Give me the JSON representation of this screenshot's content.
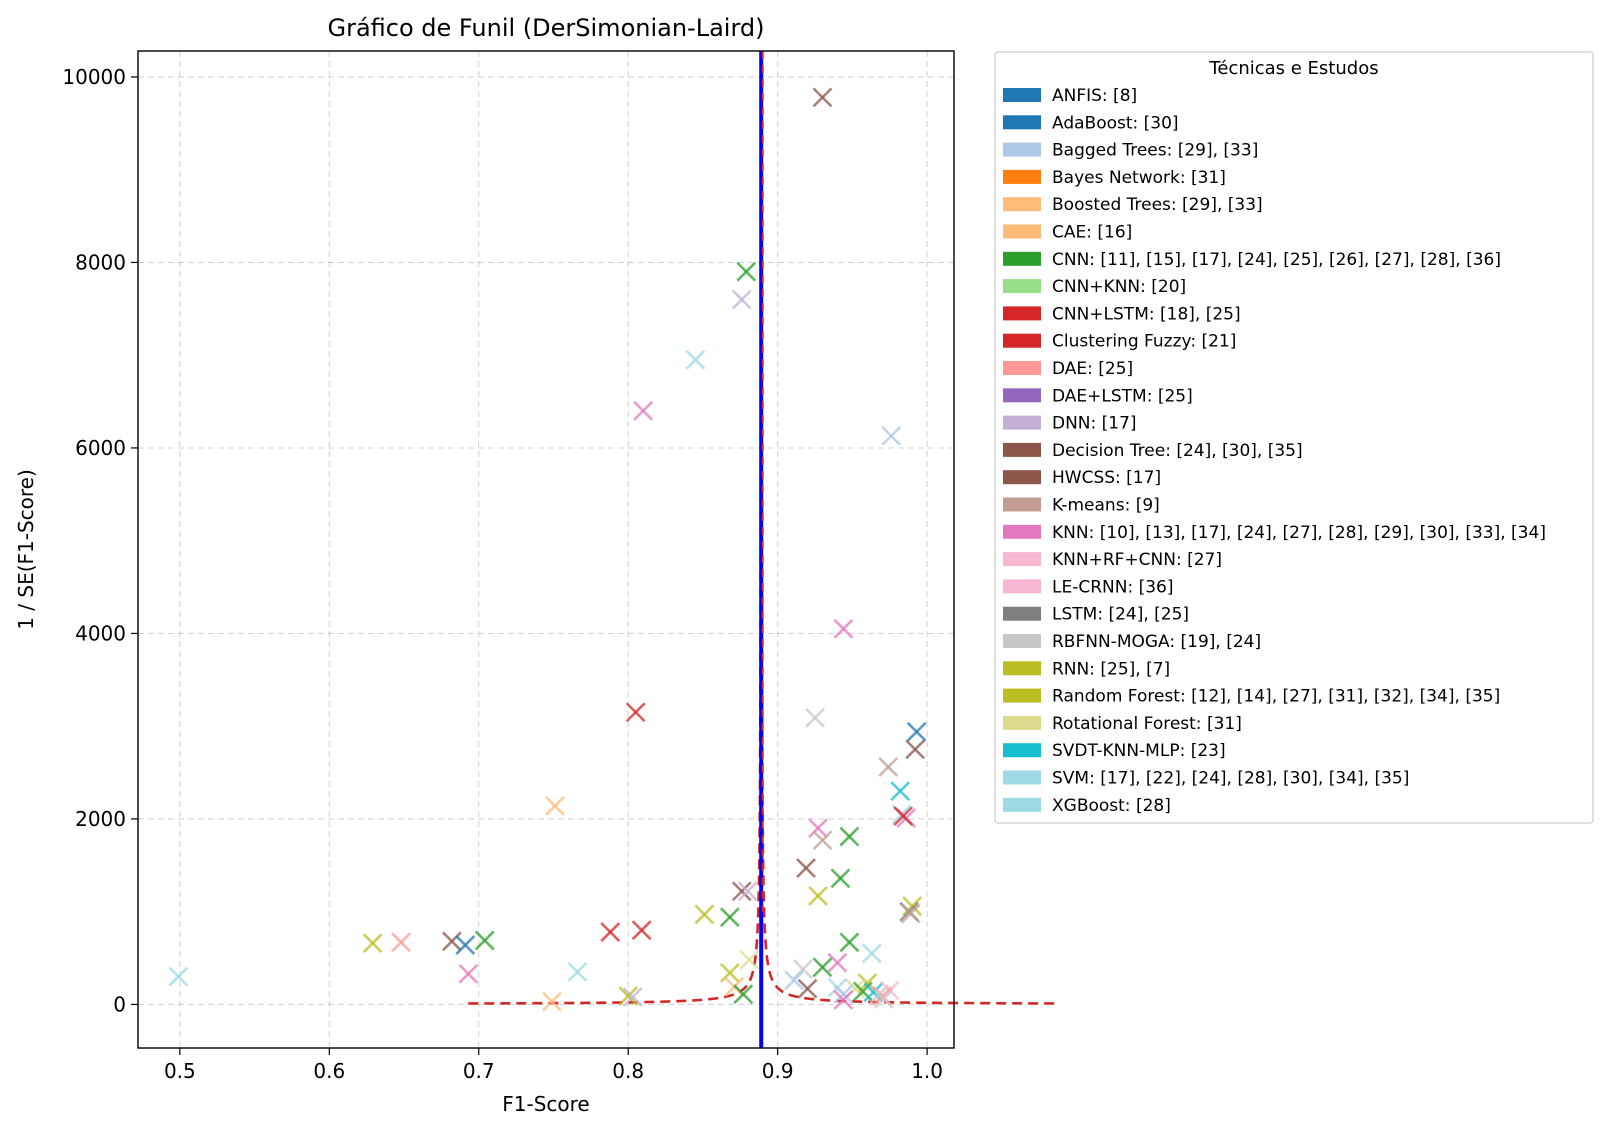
{
  "chart_data": {
    "type": "scatter",
    "title": "Gráfico de Funil (DerSimonian-Laird)",
    "xlabel": "F1-Score",
    "ylabel": "1 / SE(F1-Score)",
    "xlim": [
      0.472,
      1.018
    ],
    "ylim": [
      -470,
      10280
    ],
    "xticks": [
      0.5,
      0.6,
      0.7,
      0.8,
      0.9,
      1.0
    ],
    "xtick_labels": [
      "0.5",
      "0.6",
      "0.7",
      "0.8",
      "0.9",
      "1.0"
    ],
    "yticks": [
      0,
      2000,
      4000,
      6000,
      8000,
      10000
    ],
    "ytick_labels": [
      "0",
      "2000",
      "4000",
      "6000",
      "8000",
      "10000"
    ],
    "grid": true,
    "legend_position": "outside-right",
    "pooled_estimate": {
      "x": 0.889,
      "color": "#0000ff"
    },
    "funnel_color": "#d62728",
    "funnel_z": 1.96,
    "funnel_y_range": [
      10,
      10000
    ],
    "legend": {
      "title": "Técnicas e Estudos",
      "entries": [
        {
          "label": "ANFIS: [8]",
          "color": "#1f77b4"
        },
        {
          "label": "AdaBoost: [30]",
          "color": "#1f77b4"
        },
        {
          "label": "Bagged Trees: [29], [33]",
          "color": "#aec7e8"
        },
        {
          "label": "Bayes Network: [31]",
          "color": "#ff7f0e"
        },
        {
          "label": "Boosted Trees: [29], [33]",
          "color": "#ffbb78"
        },
        {
          "label": "CAE: [16]",
          "color": "#ffbb78"
        },
        {
          "label": "CNN: [11], [15], [17], [24], [25], [26], [27], [28], [36]",
          "color": "#2ca02c"
        },
        {
          "label": "CNN+KNN: [20]",
          "color": "#98df8a"
        },
        {
          "label": "CNN+LSTM: [18], [25]",
          "color": "#d62728"
        },
        {
          "label": "Clustering Fuzzy: [21]",
          "color": "#d62728"
        },
        {
          "label": "DAE: [25]",
          "color": "#ff9896"
        },
        {
          "label": "DAE+LSTM: [25]",
          "color": "#9467bd"
        },
        {
          "label": "DNN: [17]",
          "color": "#c5b0d5"
        },
        {
          "label": "Decision Tree: [24], [30], [35]",
          "color": "#8c564b"
        },
        {
          "label": "HWCSS: [17]",
          "color": "#8c564b"
        },
        {
          "label": "K-means: [9]",
          "color": "#c49c94"
        },
        {
          "label": "KNN: [10], [13], [17], [24], [27], [28], [29], [30], [33], [34]",
          "color": "#e377c2"
        },
        {
          "label": "KNN+RF+CNN: [27]",
          "color": "#f7b6d2"
        },
        {
          "label": "LE-CRNN: [36]",
          "color": "#f7b6d2"
        },
        {
          "label": "LSTM: [24], [25]",
          "color": "#7f7f7f"
        },
        {
          "label": "RBFNN-MOGA: [19], [24]",
          "color": "#c7c7c7"
        },
        {
          "label": "RNN: [25], [7]",
          "color": "#bcbd22"
        },
        {
          "label": "Random Forest: [12], [14], [27], [31], [32], [34], [35]",
          "color": "#bcbd22"
        },
        {
          "label": "Rotational Forest: [31]",
          "color": "#dbdb8d"
        },
        {
          "label": "SVDT-KNN-MLP: [23]",
          "color": "#17becf"
        },
        {
          "label": "SVM: [17], [22], [24], [28], [30], [34], [35]",
          "color": "#9edae5"
        },
        {
          "label": "XGBoost: [28]",
          "color": "#9edae5"
        }
      ]
    },
    "points": [
      {
        "x": 0.93,
        "y": 9780,
        "color": "#8c564b"
      },
      {
        "x": 0.879,
        "y": 7900,
        "color": "#2ca02c"
      },
      {
        "x": 0.876,
        "y": 7600,
        "color": "#c5b0d5"
      },
      {
        "x": 0.845,
        "y": 6950,
        "color": "#9edae5"
      },
      {
        "x": 0.81,
        "y": 6400,
        "color": "#e377c2"
      },
      {
        "x": 0.976,
        "y": 6130,
        "color": "#aec7e8"
      },
      {
        "x": 0.944,
        "y": 4050,
        "color": "#e377c2"
      },
      {
        "x": 0.805,
        "y": 3150,
        "color": "#d62728"
      },
      {
        "x": 0.925,
        "y": 3090,
        "color": "#c7c7c7"
      },
      {
        "x": 0.993,
        "y": 2940,
        "color": "#1f77b4"
      },
      {
        "x": 0.992,
        "y": 2750,
        "color": "#8c564b"
      },
      {
        "x": 0.974,
        "y": 2560,
        "color": "#c49c94"
      },
      {
        "x": 0.751,
        "y": 2140,
        "color": "#ffbb78"
      },
      {
        "x": 0.982,
        "y": 2300,
        "color": "#17becf"
      },
      {
        "x": 0.983,
        "y": 2050,
        "color": "#9edae5"
      },
      {
        "x": 0.986,
        "y": 2010,
        "color": "#e377c2"
      },
      {
        "x": 0.984,
        "y": 2030,
        "color": "#d62728"
      },
      {
        "x": 0.927,
        "y": 1900,
        "color": "#e377c2"
      },
      {
        "x": 0.948,
        "y": 1810,
        "color": "#2ca02c"
      },
      {
        "x": 0.93,
        "y": 1770,
        "color": "#c49c94"
      },
      {
        "x": 0.919,
        "y": 1470,
        "color": "#8c564b"
      },
      {
        "x": 0.942,
        "y": 1360,
        "color": "#2ca02c"
      },
      {
        "x": 0.876,
        "y": 1220,
        "color": "#8c564b"
      },
      {
        "x": 0.88,
        "y": 1220,
        "color": "#c5b0d5"
      },
      {
        "x": 0.927,
        "y": 1170,
        "color": "#bcbd22"
      },
      {
        "x": 0.99,
        "y": 1060,
        "color": "#bcbd22"
      },
      {
        "x": 0.988,
        "y": 1000,
        "color": "#7f7f7f"
      },
      {
        "x": 0.989,
        "y": 980,
        "color": "#c49c94"
      },
      {
        "x": 0.851,
        "y": 970,
        "color": "#bcbd22"
      },
      {
        "x": 0.868,
        "y": 940,
        "color": "#2ca02c"
      },
      {
        "x": 0.809,
        "y": 800,
        "color": "#d62728"
      },
      {
        "x": 0.788,
        "y": 780,
        "color": "#d62728"
      },
      {
        "x": 0.704,
        "y": 690,
        "color": "#2ca02c"
      },
      {
        "x": 0.682,
        "y": 680,
        "color": "#8c564b"
      },
      {
        "x": 0.691,
        "y": 640,
        "color": "#1f77b4"
      },
      {
        "x": 0.648,
        "y": 670,
        "color": "#ff9896"
      },
      {
        "x": 0.629,
        "y": 660,
        "color": "#bcbd22"
      },
      {
        "x": 0.948,
        "y": 670,
        "color": "#2ca02c"
      },
      {
        "x": 0.963,
        "y": 550,
        "color": "#9edae5"
      },
      {
        "x": 0.94,
        "y": 450,
        "color": "#e377c2"
      },
      {
        "x": 0.881,
        "y": 480,
        "color": "#dbdb8d"
      },
      {
        "x": 0.93,
        "y": 400,
        "color": "#2ca02c"
      },
      {
        "x": 0.917,
        "y": 380,
        "color": "#c7c7c7"
      },
      {
        "x": 0.766,
        "y": 350,
        "color": "#9edae5"
      },
      {
        "x": 0.693,
        "y": 330,
        "color": "#e377c2"
      },
      {
        "x": 0.868,
        "y": 340,
        "color": "#bcbd22"
      },
      {
        "x": 0.499,
        "y": 300,
        "color": "#9edae5"
      },
      {
        "x": 0.911,
        "y": 260,
        "color": "#aec7e8"
      },
      {
        "x": 0.96,
        "y": 230,
        "color": "#bcbd22"
      },
      {
        "x": 0.871,
        "y": 190,
        "color": "#ffbb78"
      },
      {
        "x": 0.92,
        "y": 170,
        "color": "#8c564b"
      },
      {
        "x": 0.94,
        "y": 180,
        "color": "#9edae5"
      },
      {
        "x": 0.952,
        "y": 170,
        "color": "#dbdb8d"
      },
      {
        "x": 0.957,
        "y": 140,
        "color": "#2ca02c"
      },
      {
        "x": 0.964,
        "y": 130,
        "color": "#17becf"
      },
      {
        "x": 0.968,
        "y": 110,
        "color": "#c7c7c7"
      },
      {
        "x": 0.975,
        "y": 150,
        "color": "#f7b6d2"
      },
      {
        "x": 0.97,
        "y": 90,
        "color": "#ff9896"
      },
      {
        "x": 0.944,
        "y": 110,
        "color": "#aec7e8"
      },
      {
        "x": 0.877,
        "y": 110,
        "color": "#2ca02c"
      },
      {
        "x": 0.8,
        "y": 90,
        "color": "#bcbd22"
      },
      {
        "x": 0.803,
        "y": 80,
        "color": "#c5b0d5"
      },
      {
        "x": 0.944,
        "y": 50,
        "color": "#e377c2"
      },
      {
        "x": 0.971,
        "y": 60,
        "color": "#c7c7c7"
      },
      {
        "x": 0.749,
        "y": 30,
        "color": "#ffbb78"
      }
    ]
  }
}
